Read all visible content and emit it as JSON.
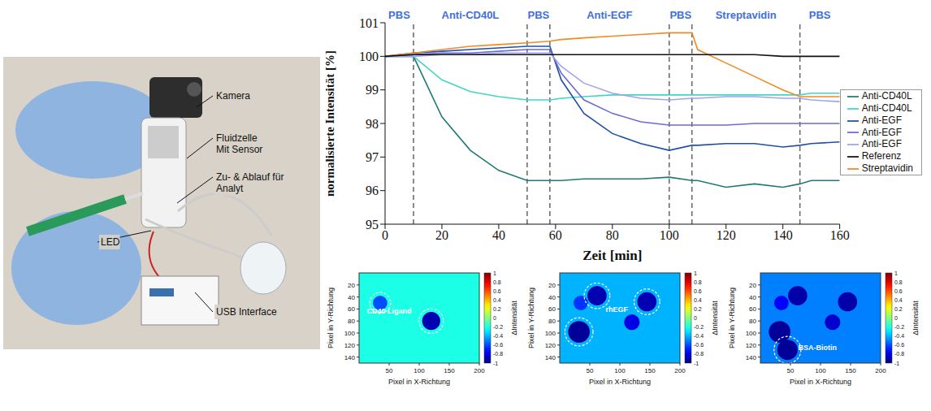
{
  "photo": {
    "labels": [
      {
        "lines": [
          "Kamera"
        ]
      },
      {
        "lines": [
          "Fluidzelle",
          "Mit Sensor"
        ]
      },
      {
        "lines": [
          "Zu- & Ablauf für",
          "Analyt"
        ]
      },
      {
        "lines": [
          "LED"
        ]
      },
      {
        "lines": [
          "USB Interface"
        ]
      }
    ]
  },
  "chart_data": {
    "type": "line",
    "x_label": "Zeit [min]",
    "y_label": "normalisierte Intensität [%]",
    "phases": [
      {
        "label": "PBS",
        "start": 0,
        "end": 10
      },
      {
        "label": "Anti-CD40L",
        "start": 10,
        "end": 50
      },
      {
        "label": "PBS",
        "start": 50,
        "end": 58
      },
      {
        "label": "Anti-EGF",
        "start": 58,
        "end": 100
      },
      {
        "label": "PBS",
        "start": 100,
        "end": 108
      },
      {
        "label": "Streptavidin",
        "start": 108,
        "end": 146
      },
      {
        "label": "PBS",
        "start": 146,
        "end": 160
      }
    ],
    "x": [
      0,
      10,
      20,
      30,
      40,
      50,
      58,
      62,
      70,
      80,
      90,
      100,
      108,
      110,
      120,
      130,
      140,
      146,
      150,
      160
    ],
    "series": [
      {
        "name": "Anti-CD40L",
        "color": "#1f7a75",
        "values": [
          100,
          100,
          98.2,
          97.2,
          96.6,
          96.3,
          96.3,
          96.3,
          96.35,
          96.35,
          96.35,
          96.4,
          96.3,
          96.3,
          96.1,
          96.2,
          96.1,
          96.2,
          96.3,
          96.3
        ]
      },
      {
        "name": "Anti-CD40L",
        "color": "#3fd6c9",
        "values": [
          100,
          100,
          99.3,
          98.95,
          98.8,
          98.7,
          98.7,
          98.75,
          98.8,
          98.85,
          98.85,
          98.85,
          98.85,
          98.85,
          98.85,
          98.85,
          98.85,
          98.85,
          98.9,
          98.9
        ]
      },
      {
        "name": "Anti-EGF",
        "color": "#1f4fa8",
        "values": [
          100,
          100.1,
          100.15,
          100.2,
          100.25,
          100.3,
          100.3,
          99.3,
          98.3,
          97.7,
          97.4,
          97.2,
          97.35,
          97.35,
          97.4,
          97.4,
          97.3,
          97.35,
          97.4,
          97.45
        ]
      },
      {
        "name": "Anti-EGF",
        "color": "#6b6bd6",
        "values": [
          100,
          100.05,
          100.1,
          100.1,
          100.15,
          100.2,
          100.2,
          99.5,
          98.7,
          98.3,
          98.05,
          97.95,
          97.95,
          97.95,
          97.95,
          98.0,
          98.0,
          98.0,
          98.0,
          98.0
        ]
      },
      {
        "name": "Anti-EGF",
        "color": "#a3a3ec",
        "values": [
          100,
          100,
          100.05,
          100.05,
          100.1,
          100.1,
          100.1,
          99.7,
          99.2,
          98.9,
          98.75,
          98.7,
          98.75,
          98.75,
          98.8,
          98.8,
          98.75,
          98.75,
          98.7,
          98.65
        ]
      },
      {
        "name": "Streptavidin",
        "color": "#f08a24",
        "values": [
          100,
          100.1,
          100.2,
          100.3,
          100.35,
          100.4,
          100.45,
          100.5,
          100.55,
          100.6,
          100.65,
          100.7,
          100.7,
          100.2,
          99.8,
          99.4,
          99.0,
          98.8,
          98.8,
          98.8
        ]
      },
      {
        "name": "Referenz",
        "color": "#111111",
        "values": [
          100,
          100.05,
          100.05,
          100.05,
          100.05,
          100.05,
          100.05,
          100.05,
          100.05,
          100.05,
          100.05,
          100.05,
          100.05,
          100.05,
          100.05,
          100.05,
          100,
          100,
          100,
          100
        ]
      }
    ],
    "xlim": [
      0,
      160
    ],
    "xticks": [
      0,
      20,
      40,
      60,
      80,
      100,
      120,
      140,
      160
    ],
    "ylim": [
      95,
      101
    ],
    "yticks": [
      95,
      96,
      97,
      98,
      99,
      100,
      101
    ],
    "grid": false,
    "legend": "right"
  },
  "insets": {
    "x_label": "Pixel in X-Richtung",
    "y_label": "Pixel in Y-Richtung",
    "colorbar_label": "ΔIntensität",
    "xlim": [
      0,
      200
    ],
    "ylim": [
      0,
      150
    ],
    "xticks": [
      50,
      100,
      150,
      200
    ],
    "yticks": [
      20,
      40,
      60,
      80,
      100,
      120,
      140
    ],
    "colorbar_range": [
      -1,
      1
    ],
    "colorbar_ticks": [
      -1,
      -0.8,
      -0.6,
      -0.4,
      -0.2,
      0,
      0.2,
      0.4,
      0.6,
      0.8,
      1
    ],
    "panels": [
      {
        "background": -0.2,
        "spots": [
          {
            "x": 35,
            "y": 50,
            "r": 12,
            "value": -0.6,
            "circled": true
          },
          {
            "x": 120,
            "y": 80,
            "r": 15,
            "value": -0.9,
            "circled": true
          }
        ],
        "annotations": [
          {
            "text": "CD40 Ligand",
            "x": 50,
            "y": 68
          }
        ]
      },
      {
        "background": -0.4,
        "spots": [
          {
            "x": 35,
            "y": 50,
            "r": 12,
            "value": -0.65,
            "circled": false
          },
          {
            "x": 120,
            "y": 82,
            "r": 13,
            "value": -0.8,
            "circled": false
          },
          {
            "x": 62,
            "y": 38,
            "r": 16,
            "value": -0.9,
            "circled": true
          },
          {
            "x": 145,
            "y": 48,
            "r": 16,
            "value": -0.9,
            "circled": true
          },
          {
            "x": 32,
            "y": 98,
            "r": 18,
            "value": -0.95,
            "circled": true
          }
        ],
        "annotations": [
          {
            "text": "rhEGF",
            "x": 95,
            "y": 65
          }
        ]
      },
      {
        "background": -0.5,
        "spots": [
          {
            "x": 35,
            "y": 50,
            "r": 12,
            "value": -0.75,
            "circled": false
          },
          {
            "x": 120,
            "y": 82,
            "r": 13,
            "value": -0.85,
            "circled": false
          },
          {
            "x": 62,
            "y": 38,
            "r": 16,
            "value": -0.92,
            "circled": false
          },
          {
            "x": 145,
            "y": 48,
            "r": 16,
            "value": -0.92,
            "circled": false
          },
          {
            "x": 32,
            "y": 98,
            "r": 18,
            "value": -0.95,
            "circled": false
          },
          {
            "x": 45,
            "y": 128,
            "r": 17,
            "value": -0.95,
            "circled": true
          }
        ],
        "annotations": [
          {
            "text": "BSA-Biotin",
            "x": 95,
            "y": 128
          }
        ]
      }
    ]
  }
}
